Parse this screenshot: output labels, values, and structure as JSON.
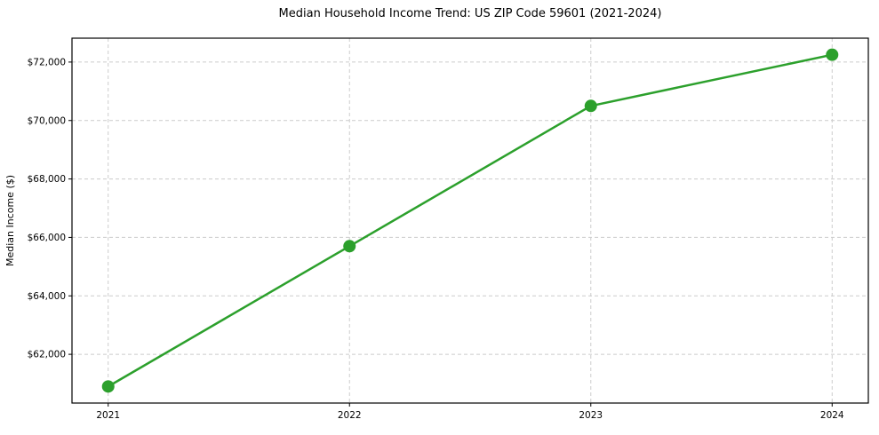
{
  "title": "Median Household Income Trend: US ZIP Code 59601 (2021-2024)",
  "chart_data": {
    "type": "line",
    "title": "Median Household Income Trend: US ZIP Code 59601 (2021-2024)",
    "xlabel": "",
    "ylabel": "Median Income ($)",
    "categories": [
      "2021",
      "2022",
      "2023",
      "2024"
    ],
    "x": [
      2021,
      2022,
      2023,
      2024
    ],
    "series": [
      {
        "name": "Median Household Income",
        "values": [
          60900,
          65700,
          70500,
          72250
        ]
      }
    ],
    "yticks": [
      62000,
      64000,
      66000,
      68000,
      70000,
      72000
    ],
    "ytick_labels": [
      "$62,000",
      "$64,000",
      "$66,000",
      "$68,000",
      "$70,000",
      "$72,000"
    ],
    "ylim": [
      60332.5,
      72817.5
    ],
    "xlim": [
      2020.85,
      2024.15
    ],
    "grid": true,
    "legend": "none",
    "line_color": "#2ca02c",
    "marker": "circle",
    "grid_color": "#cccccc",
    "background_color": "#ffffff",
    "text_color": "#000000"
  }
}
